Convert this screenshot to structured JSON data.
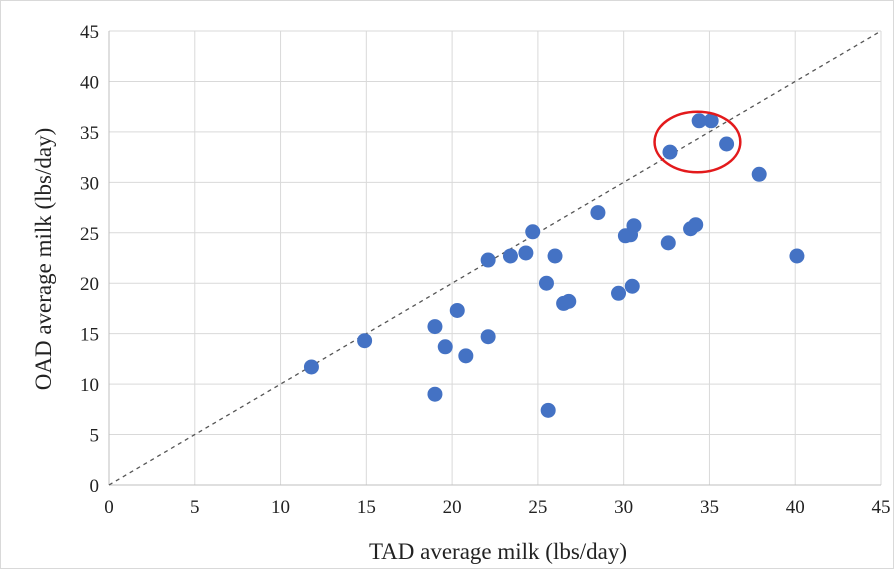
{
  "chart_data": {
    "type": "scatter",
    "title": "",
    "xlabel": "TAD average milk (lbs/day)",
    "ylabel": "OAD average milk (lbs/day)",
    "xlim": [
      0,
      45
    ],
    "ylim": [
      0,
      45
    ],
    "xticks": [
      0,
      5,
      10,
      15,
      20,
      25,
      30,
      35,
      40,
      45
    ],
    "yticks": [
      0,
      5,
      10,
      15,
      20,
      25,
      30,
      35,
      40,
      45
    ],
    "grid": true,
    "legend": "none",
    "colors": {
      "points": "#4472c4",
      "reference_line": "#555555",
      "highlight": "#e31a1c"
    },
    "reference_line": {
      "style": "dashed",
      "from": [
        0,
        0
      ],
      "to": [
        45,
        45
      ]
    },
    "highlight_circle": {
      "center": [
        34.3,
        34
      ],
      "radius_x": 2.5,
      "radius_y": 3
    },
    "points": [
      {
        "x": 11.8,
        "y": 11.7
      },
      {
        "x": 14.9,
        "y": 14.3
      },
      {
        "x": 19.0,
        "y": 15.7
      },
      {
        "x": 19.0,
        "y": 9.0
      },
      {
        "x": 19.6,
        "y": 13.7
      },
      {
        "x": 20.3,
        "y": 17.3
      },
      {
        "x": 20.8,
        "y": 12.8
      },
      {
        "x": 22.1,
        "y": 22.3
      },
      {
        "x": 22.1,
        "y": 14.7
      },
      {
        "x": 23.4,
        "y": 22.7
      },
      {
        "x": 24.3,
        "y": 23.0
      },
      {
        "x": 24.7,
        "y": 25.1
      },
      {
        "x": 25.5,
        "y": 20.0
      },
      {
        "x": 25.6,
        "y": 7.4
      },
      {
        "x": 26.0,
        "y": 22.7
      },
      {
        "x": 26.5,
        "y": 18.0
      },
      {
        "x": 26.8,
        "y": 18.2
      },
      {
        "x": 28.5,
        "y": 27.0
      },
      {
        "x": 29.7,
        "y": 19.0
      },
      {
        "x": 30.1,
        "y": 24.7
      },
      {
        "x": 30.4,
        "y": 24.8
      },
      {
        "x": 30.5,
        "y": 19.7
      },
      {
        "x": 30.6,
        "y": 25.7
      },
      {
        "x": 32.6,
        "y": 24.0
      },
      {
        "x": 32.7,
        "y": 33.0
      },
      {
        "x": 33.9,
        "y": 25.4
      },
      {
        "x": 34.2,
        "y": 25.8
      },
      {
        "x": 34.4,
        "y": 36.1
      },
      {
        "x": 35.1,
        "y": 36.1
      },
      {
        "x": 36.0,
        "y": 33.8
      },
      {
        "x": 37.9,
        "y": 30.8
      },
      {
        "x": 40.1,
        "y": 22.7
      }
    ]
  }
}
